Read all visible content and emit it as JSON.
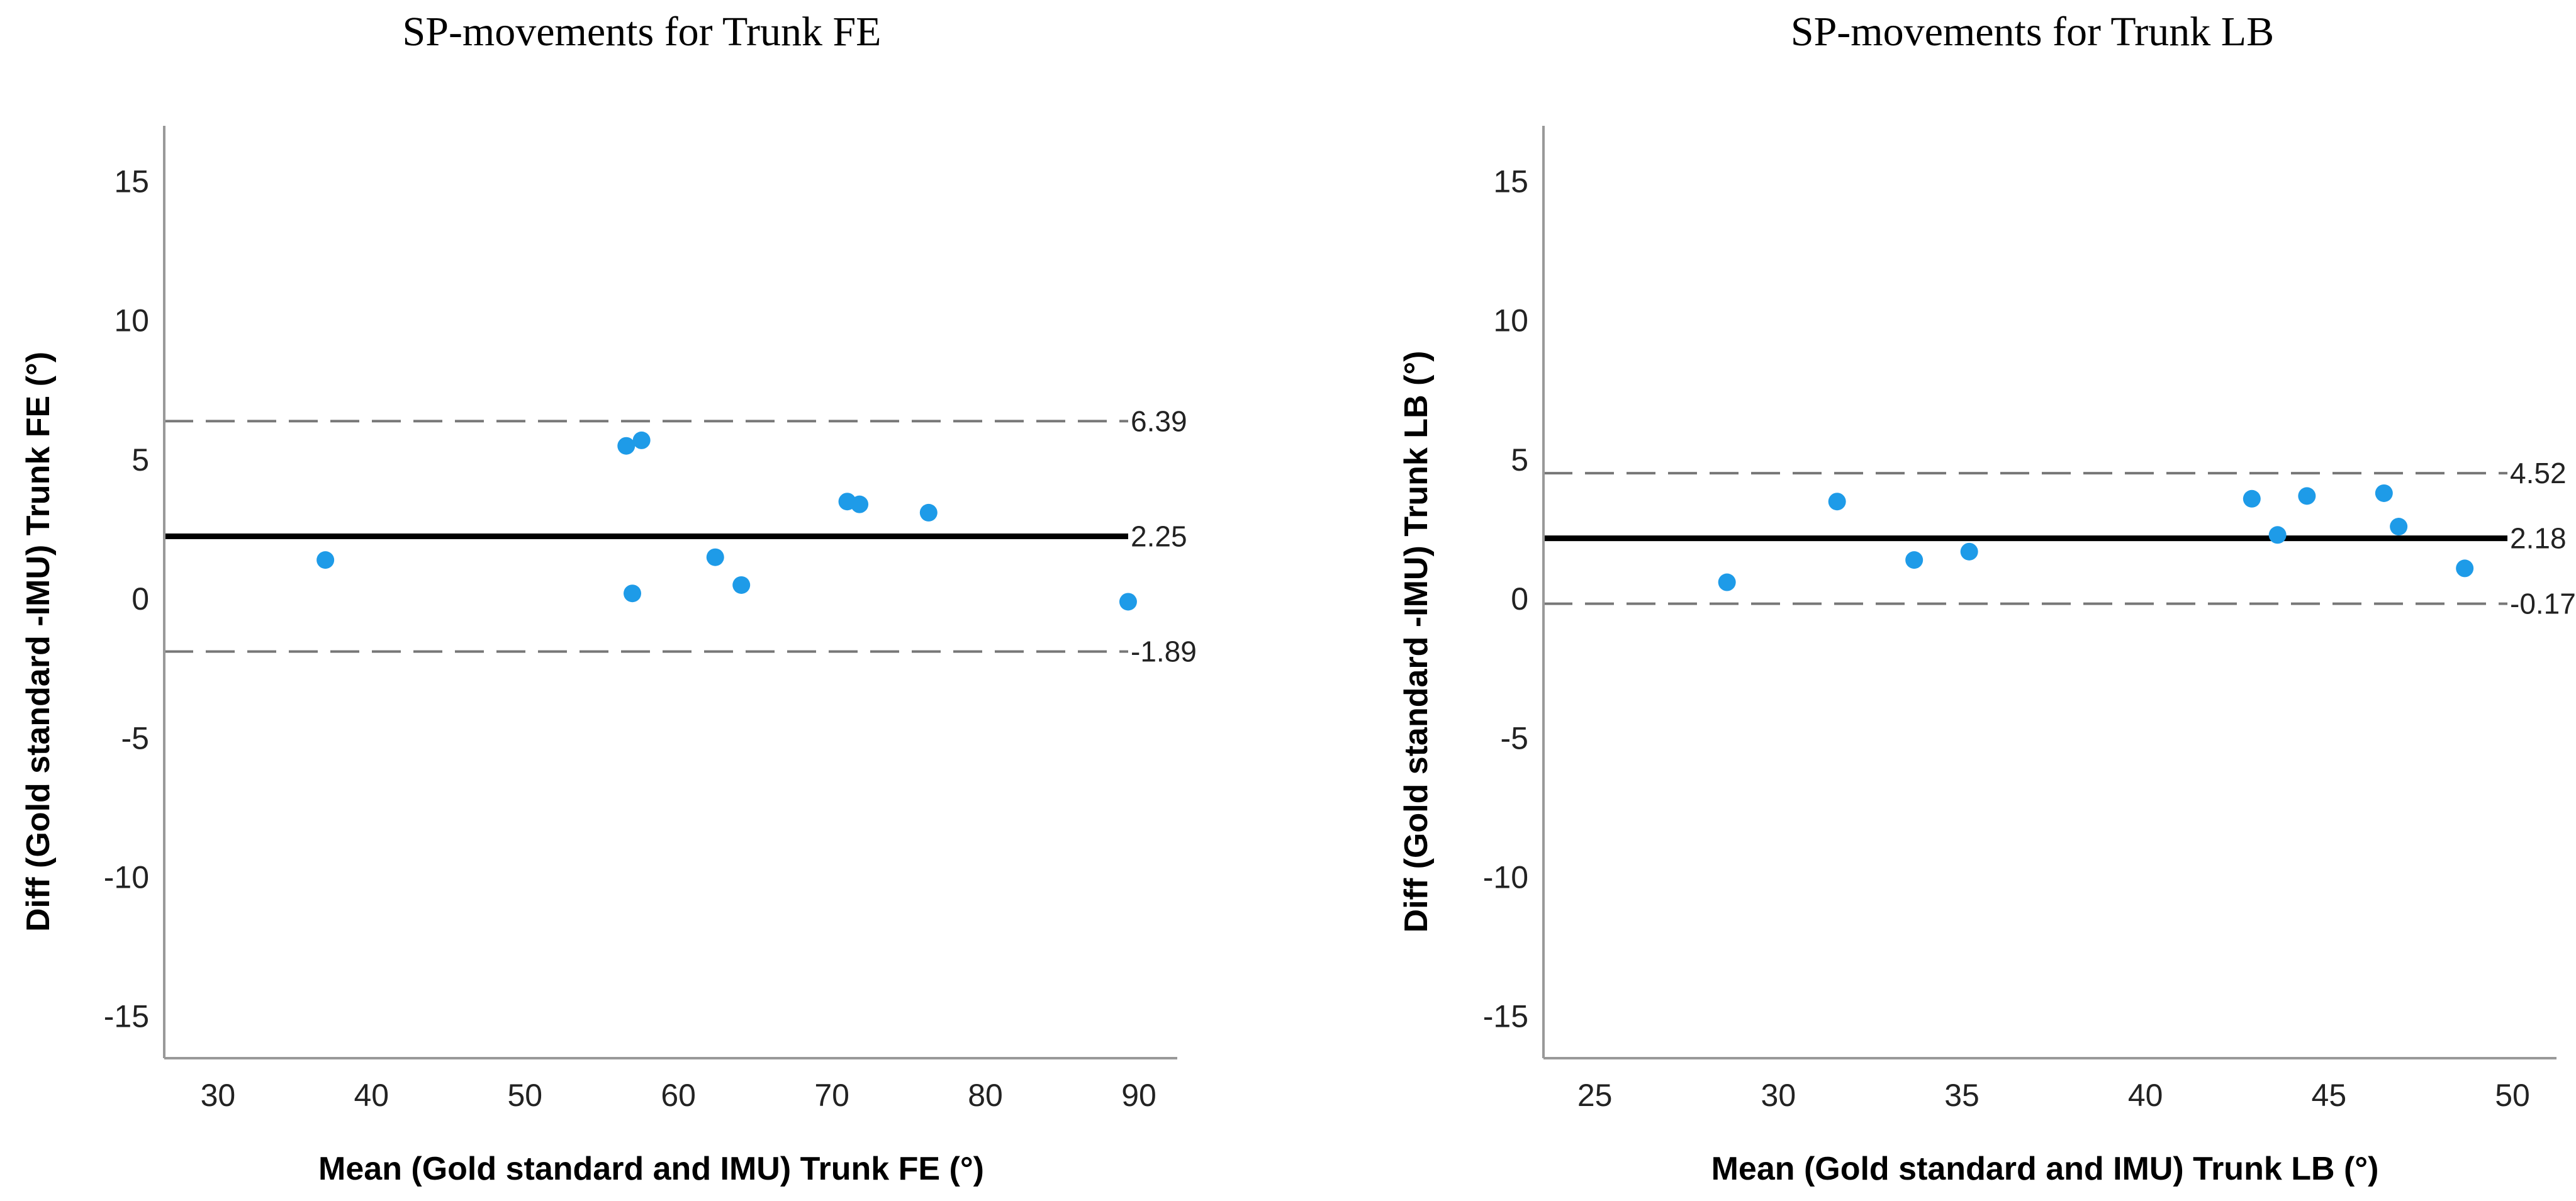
{
  "chart_data": [
    {
      "type": "scatter",
      "title": "SP-movements for Trunk FE",
      "xlabel": "Mean (Gold standard and IMU) Trunk FE (°)",
      "ylabel": "Diff (Gold standard -IMU) Trunk FE (°)",
      "xlim": [
        26.5,
        92.5
      ],
      "ylim": [
        -16.5,
        17.0
      ],
      "xticks": [
        30,
        40,
        50,
        60,
        70,
        80,
        90
      ],
      "yticks": [
        15,
        10,
        5,
        0,
        -5,
        -10,
        -15
      ],
      "point_color": "#1e9be8",
      "points": [
        {
          "x": 37.0,
          "y": 1.4
        },
        {
          "x": 56.6,
          "y": 5.5
        },
        {
          "x": 57.6,
          "y": 5.7
        },
        {
          "x": 57.0,
          "y": 0.2
        },
        {
          "x": 62.4,
          "y": 1.5
        },
        {
          "x": 64.1,
          "y": 0.5
        },
        {
          "x": 71.0,
          "y": 3.5
        },
        {
          "x": 71.8,
          "y": 3.4
        },
        {
          "x": 76.3,
          "y": 3.1
        },
        {
          "x": 89.3,
          "y": -0.1
        }
      ],
      "reference_lines": [
        {
          "name": "upper-limit",
          "y": 6.39,
          "label": "6.39",
          "style": "dashed"
        },
        {
          "name": "mean-difference",
          "y": 2.25,
          "label": "2.25",
          "style": "solid"
        },
        {
          "name": "lower-limit",
          "y": -1.89,
          "label": "-1.89",
          "style": "dashed"
        }
      ]
    },
    {
      "type": "scatter",
      "title": "SP-movements for Trunk LB",
      "xlabel": "Mean (Gold standard and IMU) Trunk LB (°)",
      "ylabel": "Diff (Gold standard -IMU) Trunk LB (°)",
      "xlim": [
        23.6,
        51.2
      ],
      "ylim": [
        -16.5,
        17.0
      ],
      "xticks": [
        25,
        30,
        35,
        40,
        45,
        50
      ],
      "yticks": [
        15,
        10,
        5,
        0,
        -5,
        -10,
        -15
      ],
      "point_color": "#1e9be8",
      "points": [
        {
          "x": 28.6,
          "y": 0.6
        },
        {
          "x": 31.6,
          "y": 3.5
        },
        {
          "x": 33.7,
          "y": 1.4
        },
        {
          "x": 35.2,
          "y": 1.7
        },
        {
          "x": 42.9,
          "y": 3.6
        },
        {
          "x": 43.6,
          "y": 2.3
        },
        {
          "x": 44.4,
          "y": 3.7
        },
        {
          "x": 46.5,
          "y": 3.8
        },
        {
          "x": 46.9,
          "y": 2.6
        },
        {
          "x": 48.7,
          "y": 1.1
        }
      ],
      "reference_lines": [
        {
          "name": "upper-limit",
          "y": 4.52,
          "label": "4.52",
          "style": "dashed"
        },
        {
          "name": "mean-difference",
          "y": 2.18,
          "label": "2.18",
          "style": "solid"
        },
        {
          "name": "lower-limit",
          "y": -0.17,
          "label": "-0.17",
          "style": "dashed"
        }
      ]
    }
  ]
}
